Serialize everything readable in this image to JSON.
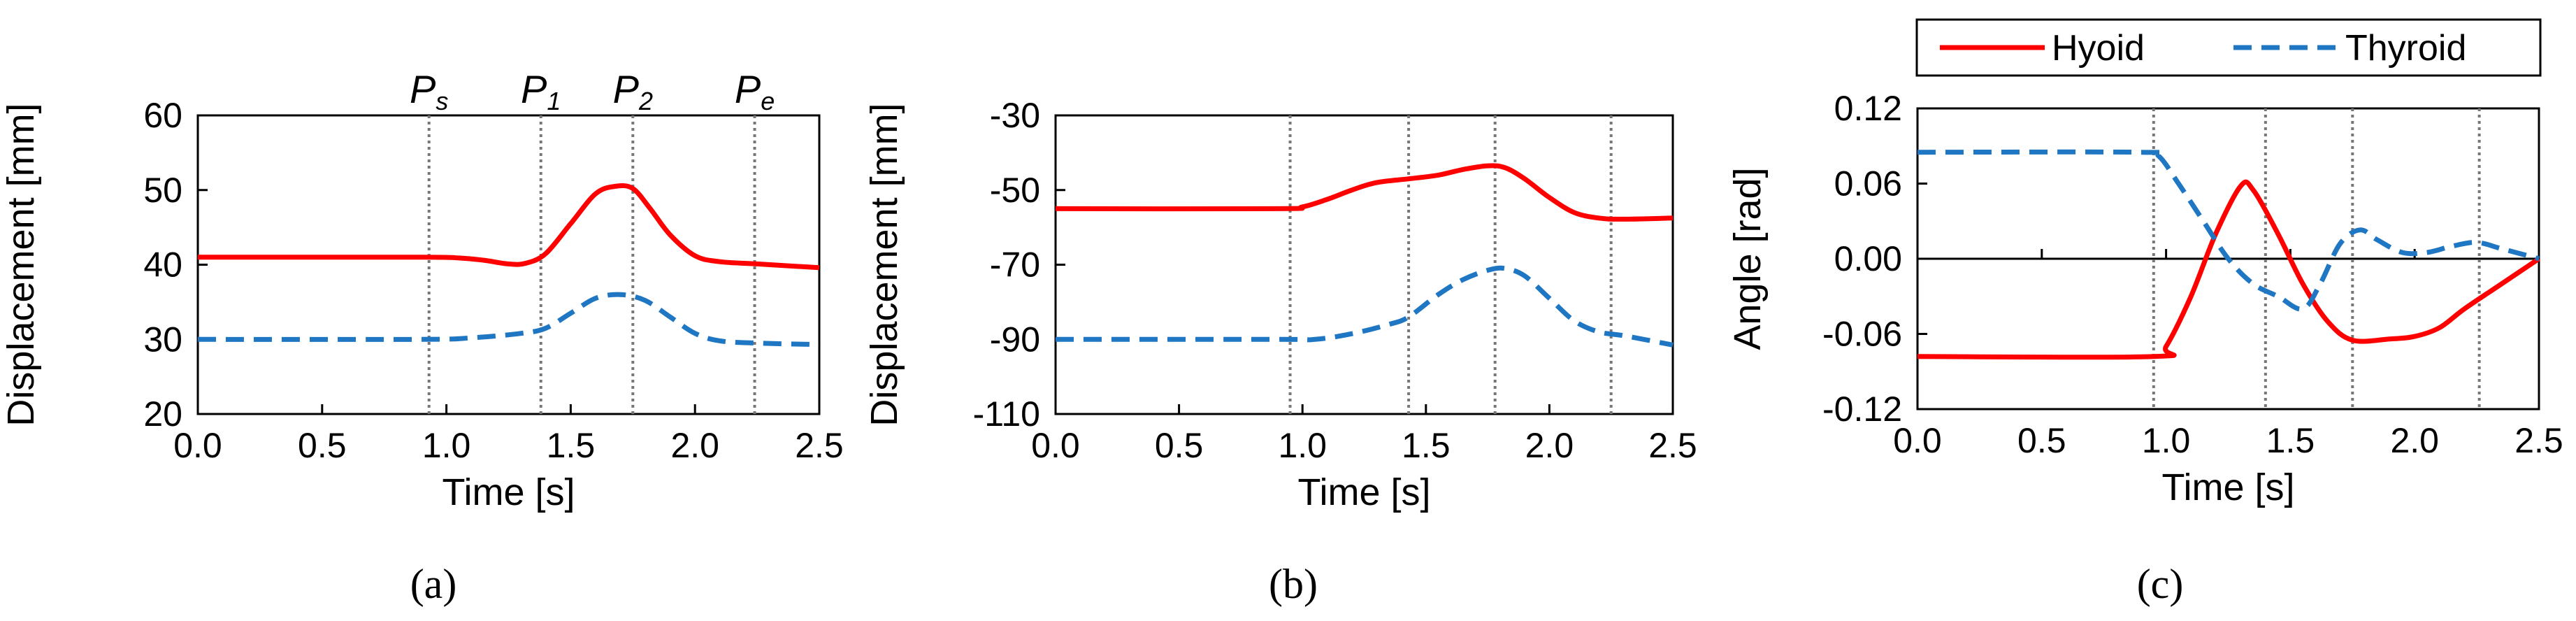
{
  "chart_data": [
    {
      "type": "line",
      "panel_label": "(a)",
      "xlabel": "Time [s]",
      "ylabel": "Displacement [mm]",
      "xlim": [
        0,
        2.5
      ],
      "ylim": [
        20,
        60
      ],
      "xticks": [
        "0.0",
        "0.5",
        "1.0",
        "1.5",
        "2.0",
        "2.5"
      ],
      "yticks": [
        "20",
        "30",
        "40",
        "50",
        "60"
      ],
      "vlines": [
        0.93,
        1.38,
        1.75,
        2.24
      ],
      "phase_labels": [
        {
          "main": "P",
          "sub": "s",
          "x": 0.93
        },
        {
          "main": "P",
          "sub": "1",
          "x": 1.38
        },
        {
          "main": "P",
          "sub": "2",
          "x": 1.75
        },
        {
          "main": "P",
          "sub": "e",
          "x": 2.24
        }
      ],
      "series": [
        {
          "name": "Hyoid",
          "color": "#ff0000",
          "dash": "solid",
          "x": [
            0,
            0.9,
            1.05,
            1.15,
            1.25,
            1.32,
            1.4,
            1.5,
            1.6,
            1.68,
            1.75,
            1.82,
            1.9,
            2.0,
            2.1,
            2.25,
            2.5
          ],
          "y": [
            41,
            41,
            40.9,
            40.6,
            40.1,
            40.2,
            41.5,
            45.5,
            49.5,
            50.5,
            50.2,
            47.5,
            44,
            41.2,
            40.4,
            40.1,
            39.6
          ]
        },
        {
          "name": "Thyroid",
          "color": "#1f77c4",
          "dash": "dashed",
          "x": [
            0,
            0.9,
            1.1,
            1.3,
            1.4,
            1.5,
            1.6,
            1.7,
            1.8,
            1.9,
            2.0,
            2.1,
            2.25,
            2.5
          ],
          "y": [
            30,
            30,
            30.2,
            30.8,
            31.5,
            33.5,
            35.5,
            36,
            35.2,
            33,
            30.8,
            29.8,
            29.5,
            29.3
          ]
        }
      ]
    },
    {
      "type": "line",
      "panel_label": "(b)",
      "xlabel": "Time [s]",
      "ylabel": "Displacement [mm]",
      "xlim": [
        0,
        2.5
      ],
      "ylim": [
        -110,
        -30
      ],
      "xticks": [
        "0.0",
        "0.5",
        "1.0",
        "1.5",
        "2.0",
        "2.5"
      ],
      "yticks": [
        "-110",
        "-90",
        "-70",
        "-50",
        "-30"
      ],
      "vlines": [
        0.95,
        1.43,
        1.78,
        2.25
      ],
      "series": [
        {
          "name": "Hyoid",
          "color": "#ff0000",
          "dash": "solid",
          "x": [
            0,
            0.9,
            1.0,
            1.1,
            1.2,
            1.3,
            1.43,
            1.55,
            1.65,
            1.75,
            1.82,
            1.9,
            2.0,
            2.1,
            2.2,
            2.3,
            2.5
          ],
          "y": [
            -55,
            -55,
            -54.5,
            -52.5,
            -50,
            -48,
            -47,
            -46,
            -44.5,
            -43.5,
            -44,
            -47,
            -52,
            -56,
            -57.5,
            -57.8,
            -57.5
          ]
        },
        {
          "name": "Thyroid",
          "color": "#1f77c4",
          "dash": "dashed",
          "x": [
            0,
            0.9,
            1.05,
            1.2,
            1.35,
            1.43,
            1.55,
            1.65,
            1.75,
            1.82,
            1.9,
            2.0,
            2.1,
            2.2,
            2.3,
            2.5
          ],
          "y": [
            -90,
            -90,
            -90,
            -88.5,
            -86,
            -84,
            -78,
            -74,
            -71.5,
            -71,
            -73,
            -79,
            -85,
            -88,
            -89,
            -91.5
          ]
        }
      ]
    },
    {
      "type": "line",
      "panel_label": "(c)",
      "xlabel": "Time [s]",
      "ylabel": "Angle [rad]",
      "xlim": [
        0,
        2.5
      ],
      "ylim": [
        -0.12,
        0.12
      ],
      "xticks": [
        "0.0",
        "0.5",
        "1.0",
        "1.5",
        "2.0",
        "2.5"
      ],
      "yticks": [
        "-0.12",
        "-0.06",
        "0.00",
        "0.06",
        "0.12"
      ],
      "vlines": [
        0.95,
        1.4,
        1.75,
        2.26
      ],
      "legend": {
        "position": "top",
        "entries": [
          "Hyoid",
          "Thyroid"
        ]
      },
      "series": [
        {
          "name": "Hyoid",
          "color": "#ff0000",
          "dash": "solid",
          "x": [
            0,
            0.95,
            1.0,
            1.1,
            1.2,
            1.3,
            1.35,
            1.45,
            1.55,
            1.65,
            1.75,
            1.9,
            2.0,
            2.1,
            2.2,
            2.35,
            2.5
          ],
          "y": [
            -0.078,
            -0.078,
            -0.07,
            -0.03,
            0.02,
            0.058,
            0.055,
            0.02,
            -0.02,
            -0.05,
            -0.065,
            -0.064,
            -0.062,
            -0.055,
            -0.04,
            -0.02,
            0.0
          ]
        },
        {
          "name": "Thyroid",
          "color": "#1f77c4",
          "dash": "dashed",
          "x": [
            0,
            0.9,
            0.97,
            1.05,
            1.15,
            1.25,
            1.35,
            1.45,
            1.55,
            1.62,
            1.7,
            1.78,
            1.85,
            1.95,
            2.05,
            2.15,
            2.25,
            2.35,
            2.5
          ],
          "y": [
            0.085,
            0.085,
            0.082,
            0.06,
            0.03,
            0.0,
            -0.02,
            -0.03,
            -0.04,
            -0.02,
            0.012,
            0.023,
            0.015,
            0.005,
            0.005,
            0.01,
            0.013,
            0.008,
            0.0
          ]
        }
      ]
    }
  ]
}
